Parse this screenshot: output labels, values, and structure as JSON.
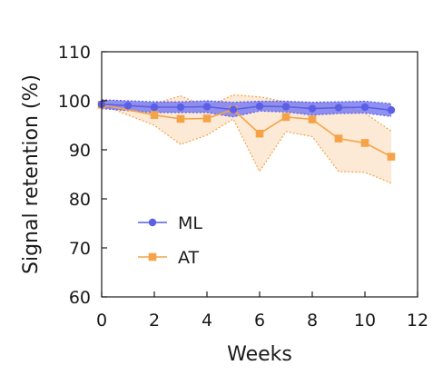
{
  "chart_data": {
    "type": "line",
    "title": "",
    "xlabel": "Weeks",
    "ylabel": "Signal retention (%)",
    "xlim": [
      0,
      12
    ],
    "ylim": [
      60,
      110
    ],
    "xticks": [
      0,
      2,
      4,
      6,
      8,
      10,
      12
    ],
    "yticks": [
      60,
      70,
      80,
      90,
      100,
      110
    ],
    "grid": false,
    "legend_position": "lower-left",
    "series": [
      {
        "name": "ML",
        "color": "#5b5fe6",
        "band_color": "#7b7ef0",
        "marker": "circle",
        "x": [
          0,
          1,
          2,
          3,
          4,
          5,
          6,
          7,
          8,
          9,
          10,
          11
        ],
        "y": [
          99.3,
          99.0,
          98.7,
          98.7,
          98.8,
          98.2,
          98.9,
          98.8,
          98.4,
          98.6,
          98.7,
          98.1
        ],
        "upper": [
          100.2,
          100.0,
          99.8,
          99.8,
          100.0,
          99.7,
          99.9,
          99.9,
          99.7,
          99.8,
          99.9,
          99.4
        ],
        "lower": [
          98.4,
          98.0,
          97.6,
          97.6,
          97.6,
          96.7,
          97.9,
          97.7,
          97.1,
          97.4,
          97.5,
          96.8
        ]
      },
      {
        "name": "AT",
        "color": "#f5a348",
        "band_color": "#fad9b5",
        "marker": "square",
        "x": [
          0,
          2,
          3,
          4,
          5,
          6,
          7,
          8,
          9,
          10,
          11
        ],
        "y": [
          99.2,
          97.1,
          96.3,
          96.4,
          98.2,
          93.3,
          96.7,
          96.2,
          92.3,
          91.4,
          88.6
        ],
        "upper": [
          99.2,
          99.4,
          101.0,
          98.7,
          101.2,
          100.8,
          99.8,
          99.6,
          99.4,
          97.5,
          93.8
        ],
        "lower": [
          99.2,
          95.0,
          91.1,
          93.0,
          96.3,
          85.6,
          93.7,
          92.7,
          85.6,
          85.4,
          83.2
        ]
      }
    ]
  }
}
